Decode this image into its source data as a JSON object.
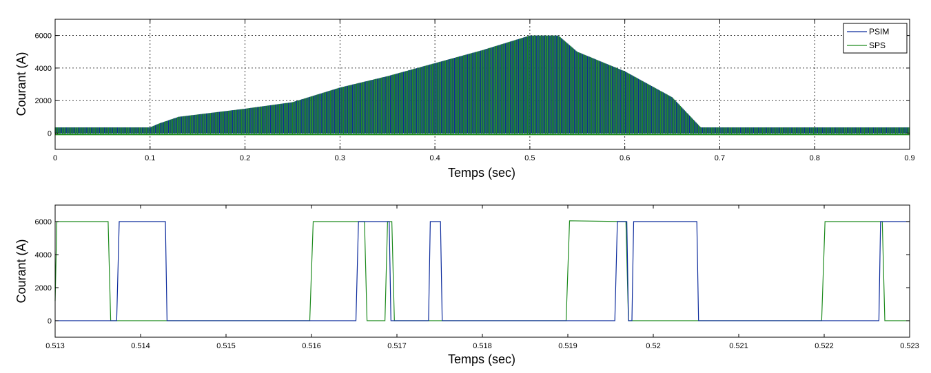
{
  "colors": {
    "psim": "#0b2a9c",
    "sps": "#1c8a1c",
    "grid": "#000000",
    "background": "#ffffff"
  },
  "chart_data": [
    {
      "type": "line",
      "xlabel": "Temps (sec)",
      "ylabel": "Courant (A)",
      "xlim": [
        0,
        0.9
      ],
      "ylim": [
        -1000,
        7000
      ],
      "x_ticks": [
        "0",
        "0.1",
        "0.2",
        "0.3",
        "0.4",
        "0.5",
        "0.6",
        "0.7",
        "0.8",
        "0.9"
      ],
      "y_ticks": [
        "0",
        "2000",
        "4000",
        "6000"
      ],
      "grid": true,
      "legend": "top-right",
      "legend_entries": [
        "PSIM",
        "SPS"
      ],
      "render": "switching-envelope",
      "series": [
        {
          "name": "PSIM",
          "low": 0,
          "envelope_x": [
            0,
            0.1,
            0.11,
            0.13,
            0.2,
            0.25,
            0.3,
            0.35,
            0.4,
            0.45,
            0.5,
            0.53,
            0.55,
            0.6,
            0.65,
            0.68,
            0.7,
            0.9
          ],
          "envelope_high": [
            350,
            350,
            600,
            1000,
            1500,
            1900,
            2800,
            3500,
            4300,
            5100,
            6000,
            6000,
            5000,
            3800,
            2200,
            350,
            350,
            350
          ]
        },
        {
          "name": "SPS",
          "low": -100,
          "envelope_x": [
            0,
            0.1,
            0.11,
            0.13,
            0.2,
            0.25,
            0.3,
            0.35,
            0.4,
            0.45,
            0.5,
            0.53,
            0.55,
            0.6,
            0.65,
            0.68,
            0.7,
            0.9
          ],
          "envelope_high": [
            350,
            350,
            600,
            1000,
            1500,
            1900,
            2800,
            3500,
            4300,
            5100,
            6000,
            6000,
            5000,
            3800,
            2200,
            350,
            350,
            350
          ]
        }
      ]
    },
    {
      "type": "line",
      "xlabel": "Temps (sec)",
      "ylabel": "Courant (A)",
      "xlim": [
        0.513,
        0.523
      ],
      "ylim": [
        -1000,
        7000
      ],
      "x_ticks": [
        "0.513",
        "0.514",
        "0.515",
        "0.516",
        "0.517",
        "0.518",
        "0.519",
        "0.52",
        "0.521",
        "0.522",
        "0.523"
      ],
      "y_ticks": [
        "0",
        "2000",
        "4000",
        "6000"
      ],
      "grid": false,
      "series": [
        {
          "name": "PSIM",
          "x": [
            0.513,
            0.51372,
            0.51375,
            0.51429,
            0.51431,
            0.51652,
            0.51655,
            0.51691,
            0.51693,
            0.51706,
            0.51708,
            0.51737,
            0.51739,
            0.51751,
            0.51753,
            0.51955,
            0.51958,
            0.51969,
            0.51971,
            0.51975,
            0.51977,
            0.52051,
            0.52053,
            0.52264,
            0.52266,
            0.523
          ],
          "y": [
            0,
            0,
            6000,
            6000,
            0,
            0,
            6000,
            6000,
            0,
            0,
            0,
            0,
            6000,
            6000,
            0,
            0,
            6000,
            6000,
            0,
            0,
            6000,
            6000,
            0,
            0,
            6000,
            6000
          ]
        },
        {
          "name": "SPS",
          "x": [
            0.513,
            0.51302,
            0.51362,
            0.51365,
            0.51598,
            0.51602,
            0.51662,
            0.51665,
            0.51686,
            0.51689,
            0.51694,
            0.51697,
            0.51898,
            0.51902,
            0.51968,
            0.51971,
            0.52197,
            0.52201,
            0.52268,
            0.52271,
            0.523
          ],
          "y": [
            1200,
            6000,
            6000,
            0,
            0,
            6000,
            6000,
            0,
            0,
            6000,
            6000,
            0,
            0,
            6050,
            6000,
            0,
            0,
            6000,
            6000,
            0,
            0
          ]
        }
      ]
    }
  ]
}
